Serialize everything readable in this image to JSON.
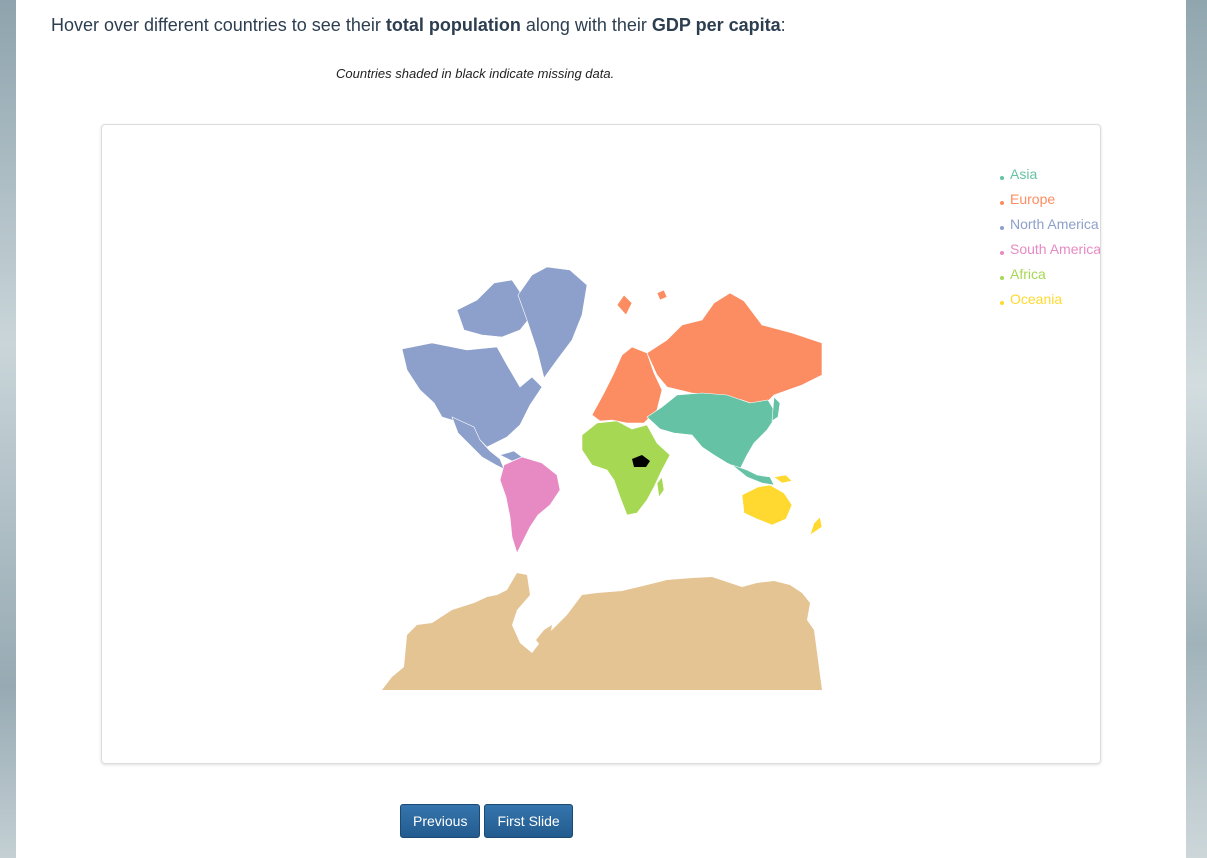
{
  "intro": {
    "prefix": "Hover over different countries to see their ",
    "bold1": "total population",
    "middle": " along with their ",
    "bold2": "GDP per capita",
    "suffix": ":"
  },
  "note": "Countries shaded in black indicate missing data.",
  "legend": [
    {
      "label": "Asia",
      "color": "#66c2a5"
    },
    {
      "label": "Europe",
      "color": "#fc8d62"
    },
    {
      "label": "North America",
      "color": "#8da0cb"
    },
    {
      "label": "South America",
      "color": "#e78ac3"
    },
    {
      "label": "Africa",
      "color": "#a6d854"
    },
    {
      "label": "Oceania",
      "color": "#ffd92f"
    }
  ],
  "colors": {
    "antarctica": "#e5c494",
    "missing": "#000000"
  },
  "buttons": {
    "previous": "Previous",
    "first_slide": "First Slide"
  }
}
